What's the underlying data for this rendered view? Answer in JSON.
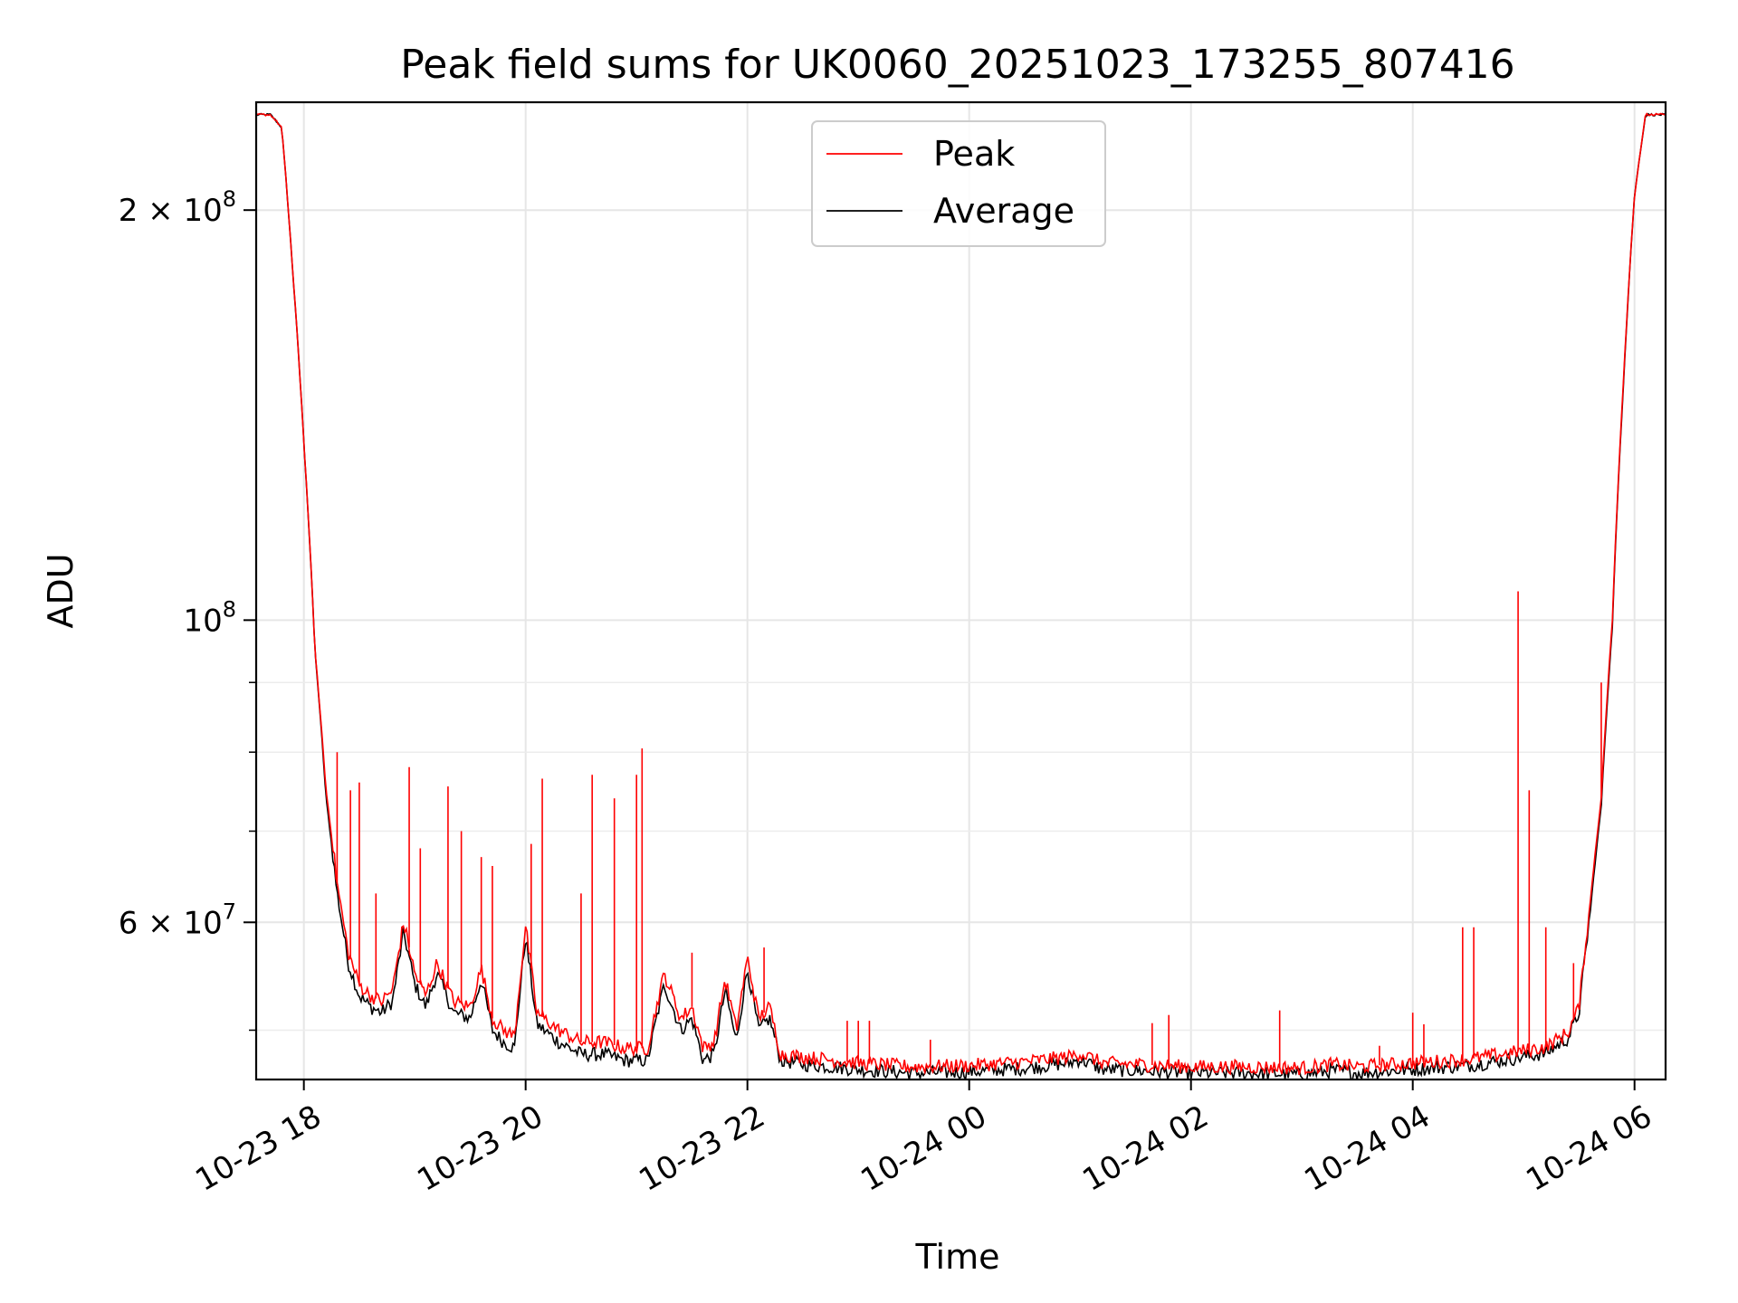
{
  "chart_data": {
    "type": "line",
    "title": "Peak field sums for UK0060_20251023_173255_807416",
    "xlabel": "Time",
    "ylabel": "ADU",
    "yscale": "log",
    "xlim_hours": [
      -0.43,
      12.28
    ],
    "ylim": [
      46000000,
      240000000
    ],
    "grid": true,
    "legend_position": "upper center",
    "x_ticks": [
      {
        "hours": 0,
        "label": "10-23 18"
      },
      {
        "hours": 2,
        "label": "10-23 20"
      },
      {
        "hours": 4,
        "label": "10-23 22"
      },
      {
        "hours": 6,
        "label": "10-24 00"
      },
      {
        "hours": 8,
        "label": "10-24 02"
      },
      {
        "hours": 10,
        "label": "10-24 04"
      },
      {
        "hours": 12,
        "label": "10-24 06"
      }
    ],
    "y_major_ticks": [
      {
        "value": 200000000,
        "mant": "2 × 10",
        "exp": "8"
      },
      {
        "value": 100000000,
        "mant": "10",
        "exp": "8"
      },
      {
        "value": 60000000,
        "mant": "6 × 10",
        "exp": "7"
      }
    ],
    "y_minor_ticks": [
      50000000,
      70000000,
      80000000,
      90000000
    ],
    "series": [
      {
        "name": "Peak",
        "color": "#ff0000",
        "x_hours": [
          -0.43,
          -0.3,
          -0.2,
          -0.1,
          0.0,
          0.1,
          0.2,
          0.3,
          0.4,
          0.5,
          0.6,
          0.7,
          0.8,
          0.9,
          1.0,
          1.1,
          1.2,
          1.35,
          1.5,
          1.6,
          1.7,
          1.8,
          1.9,
          2.0,
          2.1,
          2.3,
          2.5,
          2.7,
          2.9,
          3.1,
          3.25,
          3.4,
          3.5,
          3.6,
          3.7,
          3.8,
          3.9,
          4.0,
          4.1,
          4.2,
          4.3,
          4.5,
          5.0,
          5.5,
          6.0,
          6.5,
          6.9,
          7.0,
          7.2,
          7.5,
          8.0,
          8.5,
          9.0,
          9.3,
          9.5,
          10.0,
          10.5,
          10.8,
          11.0,
          11.2,
          11.4,
          11.5,
          11.6,
          11.7,
          11.8,
          11.9,
          12.0,
          12.1,
          12.28
        ],
        "values": [
          235000000,
          235000000,
          230000000,
          180000000,
          135000000,
          95000000,
          75000000,
          64000000,
          57000000,
          54000000,
          53000000,
          52500000,
          53500000,
          60000000,
          55000000,
          53000000,
          56000000,
          52500000,
          52000000,
          55500000,
          51000000,
          50000000,
          49500000,
          59500000,
          51500000,
          50000000,
          49000000,
          49000000,
          48500000,
          48500000,
          55000000,
          51000000,
          52000000,
          48500000,
          49000000,
          54500000,
          50000000,
          56500000,
          51000000,
          52000000,
          48000000,
          47800000,
          47300000,
          47000000,
          47100000,
          47400000,
          47800000,
          48100000,
          47300000,
          47200000,
          47000000,
          47000000,
          46900000,
          47200000,
          47000000,
          47300000,
          47600000,
          48000000,
          48300000,
          48600000,
          49800000,
          52000000,
          62000000,
          74000000,
          100000000,
          150000000,
          205000000,
          235000000,
          235000000
        ],
        "spikes": [
          {
            "x_hours": 0.3,
            "value": 80000000
          },
          {
            "x_hours": 0.42,
            "value": 75000000
          },
          {
            "x_hours": 0.5,
            "value": 76000000
          },
          {
            "x_hours": 0.65,
            "value": 63000000
          },
          {
            "x_hours": 0.95,
            "value": 78000000
          },
          {
            "x_hours": 1.05,
            "value": 68000000
          },
          {
            "x_hours": 1.3,
            "value": 75500000
          },
          {
            "x_hours": 1.42,
            "value": 70000000
          },
          {
            "x_hours": 1.6,
            "value": 67000000
          },
          {
            "x_hours": 1.7,
            "value": 66000000
          },
          {
            "x_hours": 2.05,
            "value": 68500000
          },
          {
            "x_hours": 2.15,
            "value": 76500000
          },
          {
            "x_hours": 2.5,
            "value": 63000000
          },
          {
            "x_hours": 2.6,
            "value": 77000000
          },
          {
            "x_hours": 2.8,
            "value": 74000000
          },
          {
            "x_hours": 3.0,
            "value": 77000000
          },
          {
            "x_hours": 3.05,
            "value": 80500000
          },
          {
            "x_hours": 3.5,
            "value": 57000000
          },
          {
            "x_hours": 4.15,
            "value": 57500000
          },
          {
            "x_hours": 4.9,
            "value": 50800000
          },
          {
            "x_hours": 5.0,
            "value": 50800000
          },
          {
            "x_hours": 5.1,
            "value": 50800000
          },
          {
            "x_hours": 5.65,
            "value": 49200000
          },
          {
            "x_hours": 7.65,
            "value": 50600000
          },
          {
            "x_hours": 7.8,
            "value": 51300000
          },
          {
            "x_hours": 8.8,
            "value": 51700000
          },
          {
            "x_hours": 9.7,
            "value": 48700000
          },
          {
            "x_hours": 10.0,
            "value": 51500000
          },
          {
            "x_hours": 10.1,
            "value": 50500000
          },
          {
            "x_hours": 10.45,
            "value": 59500000
          },
          {
            "x_hours": 10.55,
            "value": 59500000
          },
          {
            "x_hours": 10.95,
            "value": 105000000
          },
          {
            "x_hours": 11.05,
            "value": 75000000
          },
          {
            "x_hours": 11.2,
            "value": 59500000
          },
          {
            "x_hours": 11.45,
            "value": 56000000
          },
          {
            "x_hours": 11.7,
            "value": 90000000
          }
        ]
      },
      {
        "name": "Average",
        "color": "#000000",
        "x_hours": [
          -0.43,
          -0.3,
          -0.2,
          -0.1,
          0.0,
          0.1,
          0.2,
          0.3,
          0.4,
          0.5,
          0.6,
          0.7,
          0.8,
          0.9,
          1.0,
          1.1,
          1.2,
          1.35,
          1.5,
          1.6,
          1.7,
          1.8,
          1.9,
          2.0,
          2.1,
          2.3,
          2.5,
          2.7,
          2.9,
          3.1,
          3.25,
          3.4,
          3.5,
          3.6,
          3.7,
          3.8,
          3.9,
          4.0,
          4.1,
          4.2,
          4.3,
          4.5,
          5.0,
          5.5,
          6.0,
          6.5,
          6.9,
          7.0,
          7.2,
          7.5,
          8.0,
          8.5,
          9.0,
          9.3,
          9.5,
          10.0,
          10.5,
          10.8,
          11.0,
          11.2,
          11.4,
          11.5,
          11.6,
          11.7,
          11.8,
          11.9,
          12.0,
          12.1,
          12.28
        ],
        "values": [
          235000000,
          235000000,
          230000000,
          180000000,
          135000000,
          95000000,
          74000000,
          63000000,
          56000000,
          53000000,
          52000000,
          51500000,
          52500000,
          59000000,
          54000000,
          52000000,
          55000000,
          51500000,
          51000000,
          54500000,
          50000000,
          49000000,
          48500000,
          58500000,
          50500000,
          49000000,
          48000000,
          48000000,
          47500000,
          47500000,
          54000000,
          50000000,
          51000000,
          47500000,
          48000000,
          53500000,
          49000000,
          55500000,
          50000000,
          51000000,
          47500000,
          47200000,
          46800000,
          46500000,
          46600000,
          46900000,
          47300000,
          47600000,
          46800000,
          46700000,
          46500000,
          46500000,
          46400000,
          46700000,
          46500000,
          46800000,
          47100000,
          47500000,
          47800000,
          48100000,
          49300000,
          51500000,
          61000000,
          73000000,
          99000000,
          149000000,
          205000000,
          235000000,
          235000000
        ]
      }
    ]
  }
}
